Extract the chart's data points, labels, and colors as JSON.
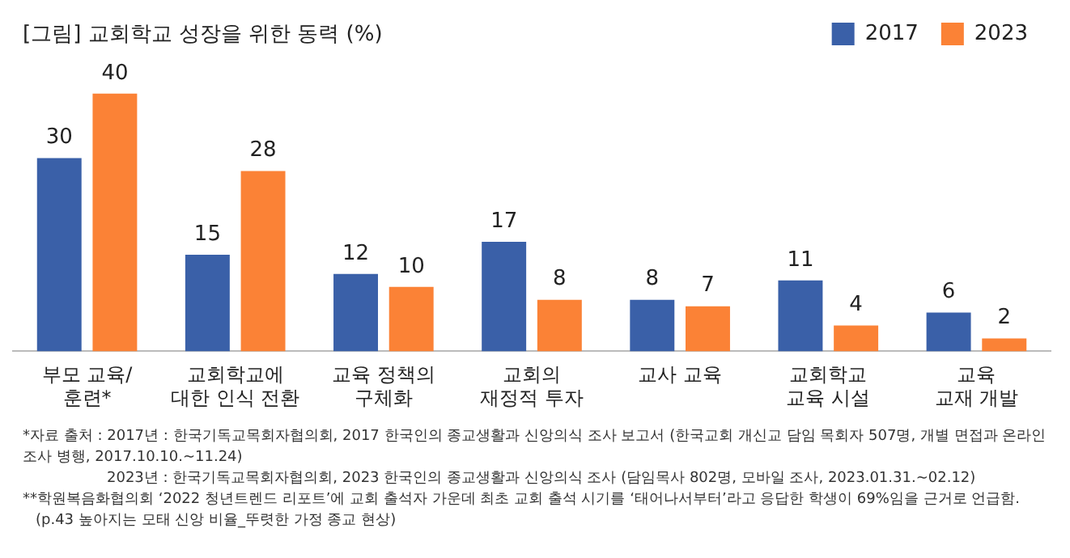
{
  "chart_data": {
    "type": "bar",
    "title": "[그림] 교회학교 성장을 위한 동력 (%)",
    "categories": [
      "부모 교육/\n훈련*",
      "교회학교에\n대한 인식 전환",
      "교육 정책의\n구체화",
      "교회의\n재정적 투자",
      "교사 교육",
      "교회학교\n교육 시설",
      "교육\n교재 개발"
    ],
    "series": [
      {
        "name": "2017",
        "color": "#3a60a8",
        "values": [
          30,
          15,
          12,
          17,
          8,
          11,
          6
        ]
      },
      {
        "name": "2023",
        "color": "#fb8236",
        "values": [
          40,
          28,
          10,
          8,
          7,
          4,
          2
        ]
      }
    ],
    "data_labels": true,
    "grid": false,
    "legend": "top right",
    "annotations": [
      "*자료 출처 : 2017년 : 한국기독교목회자협의회, 2017 한국인의 종교생활과 신앙의식 조사 보고서 (한국교회 개신교 담임 목회자 507명, 개별 면접과 온라인 조사 병행, 2017.10.10.~11.24)",
      "2023년 : 한국기독교목회자협의회, 2023 한국인의 종교생활과 신앙의식 조사 (담임목사 802명, 모바일 조사, 2023.01.31.~02.12)",
      "**학원복음화협의회 ‘2022 청년트렌드 리포트’에 교회 출석자 가운데 최초 교회 출석 시기를 ‘태어나서부터’라고 응답한 학생이 69%임을 근거로 언급함.",
      "(p.43 높아지는 모태 신앙 비율_뚜렷한 가정 종교 현상)"
    ]
  }
}
